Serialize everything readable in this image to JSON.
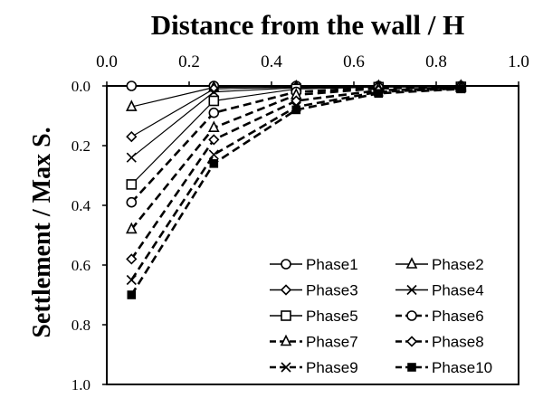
{
  "chart_data": {
    "type": "line",
    "title": "Distance from the wall / H",
    "xlabel": "Distance from the wall / H",
    "ylabel": "Settlement / Max S.",
    "xlim": [
      0,
      1
    ],
    "ylim": [
      0,
      1
    ],
    "y_inverted": true,
    "x_axis_position": "top",
    "x_ticks": [
      "0.0",
      "0.2",
      "0.4",
      "0.6",
      "0.8",
      "1.0"
    ],
    "y_ticks": [
      "0.0",
      "0.2",
      "0.4",
      "0.6",
      "0.8",
      "1.0"
    ],
    "grid": false,
    "legend_position": "bottom-right",
    "legend_columns": 2,
    "x": [
      0.06,
      0.26,
      0.46,
      0.66,
      0.86
    ],
    "series": [
      {
        "name": "Phase1",
        "line": "solid",
        "marker": "circle-open",
        "values": [
          0.0,
          0.0,
          0.0,
          0.0,
          0.0
        ]
      },
      {
        "name": "Phase2",
        "line": "solid",
        "marker": "triangle-open",
        "values": [
          0.07,
          0.005,
          0.002,
          0.001,
          0.0
        ]
      },
      {
        "name": "Phase3",
        "line": "solid",
        "marker": "diamond-open",
        "values": [
          0.17,
          0.01,
          0.004,
          0.002,
          0.001
        ]
      },
      {
        "name": "Phase4",
        "line": "solid",
        "marker": "x",
        "values": [
          0.24,
          0.02,
          0.006,
          0.003,
          0.002
        ]
      },
      {
        "name": "Phase5",
        "line": "solid",
        "marker": "square-open",
        "values": [
          0.33,
          0.05,
          0.01,
          0.004,
          0.003
        ]
      },
      {
        "name": "Phase6",
        "line": "dashed",
        "marker": "circle-open",
        "values": [
          0.39,
          0.09,
          0.02,
          0.006,
          0.004
        ]
      },
      {
        "name": "Phase7",
        "line": "dashed",
        "marker": "triangle-open",
        "values": [
          0.48,
          0.14,
          0.03,
          0.008,
          0.005
        ]
      },
      {
        "name": "Phase8",
        "line": "dashed",
        "marker": "diamond-open",
        "values": [
          0.58,
          0.18,
          0.05,
          0.015,
          0.006
        ]
      },
      {
        "name": "Phase9",
        "line": "dashed",
        "marker": "x",
        "values": [
          0.65,
          0.23,
          0.07,
          0.02,
          0.008
        ]
      },
      {
        "name": "Phase10",
        "line": "dashed",
        "marker": "square-filled",
        "values": [
          0.7,
          0.26,
          0.08,
          0.025,
          0.01
        ]
      }
    ]
  }
}
